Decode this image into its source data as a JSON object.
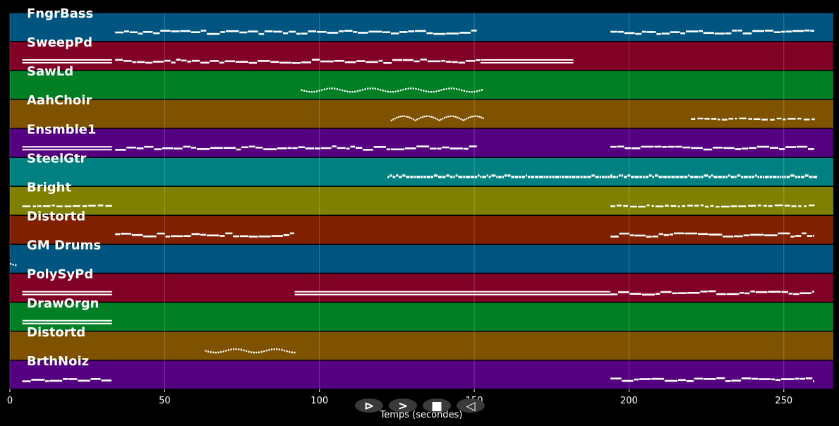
{
  "timeline": {
    "xlabel": "Temps (secondes)",
    "xlim": [
      0,
      266
    ],
    "ticks": [
      0,
      50,
      100,
      150,
      200,
      250
    ],
    "tick_labels": [
      "0",
      "50",
      "100",
      "150",
      "200",
      "250"
    ],
    "grid": true,
    "tracks": [
      {
        "name": "FngrBass",
        "color": "#005580",
        "notes": [
          [
            34,
            151,
            "wave"
          ],
          [
            194,
            260,
            "wave"
          ]
        ]
      },
      {
        "name": "SweepPd",
        "color": "#800026",
        "notes": [
          [
            4,
            33,
            "block"
          ],
          [
            34,
            152,
            "wave"
          ],
          [
            152,
            182,
            "block"
          ]
        ]
      },
      {
        "name": "SawLd",
        "color": "#007f24",
        "notes": [
          [
            94,
            153,
            "dotted"
          ]
        ]
      },
      {
        "name": "AahChoir",
        "color": "#7f5200",
        "notes": [
          [
            123,
            153,
            "arc"
          ],
          [
            220,
            260,
            "dash"
          ]
        ]
      },
      {
        "name": "Ensmble1",
        "color": "#540080",
        "notes": [
          [
            4,
            33,
            "block"
          ],
          [
            34,
            151,
            "wave"
          ],
          [
            194,
            260,
            "wave"
          ]
        ]
      },
      {
        "name": "SteelGtr",
        "color": "#008080",
        "notes": [
          [
            122,
            194,
            "dense"
          ],
          [
            194,
            260,
            "dense"
          ]
        ]
      },
      {
        "name": "Bright",
        "color": "#7f8000",
        "notes": [
          [
            4,
            33,
            "dash"
          ],
          [
            194,
            260,
            "dash"
          ]
        ]
      },
      {
        "name": "Distortd",
        "color": "#7f2000",
        "notes": [
          [
            34,
            92,
            "wave"
          ],
          [
            194,
            260,
            "wave"
          ]
        ]
      },
      {
        "name": "GM Drums",
        "color": "#005580",
        "notes": [
          [
            0,
            2,
            "dotted"
          ]
        ]
      },
      {
        "name": "PolySyPd",
        "color": "#800026",
        "notes": [
          [
            4,
            33,
            "block"
          ],
          [
            92,
            194,
            "block"
          ],
          [
            194,
            260,
            "wave"
          ]
        ]
      },
      {
        "name": "DrawOrgn",
        "color": "#007f24",
        "notes": [
          [
            4,
            33,
            "block"
          ]
        ]
      },
      {
        "name": "Distortd",
        "color": "#7f5200",
        "notes": [
          [
            63,
            92,
            "dotted"
          ]
        ]
      },
      {
        "name": "BrthNoiz",
        "color": "#540080",
        "notes": [
          [
            4,
            33,
            "wave"
          ],
          [
            194,
            260,
            "wave"
          ]
        ]
      }
    ]
  },
  "controls": [
    {
      "name": "play-icon",
      "glyph": "⊳"
    },
    {
      "name": "forward-icon",
      "glyph": ">"
    },
    {
      "name": "stop-icon",
      "glyph": "■"
    },
    {
      "name": "back-icon",
      "glyph": "◁"
    }
  ]
}
